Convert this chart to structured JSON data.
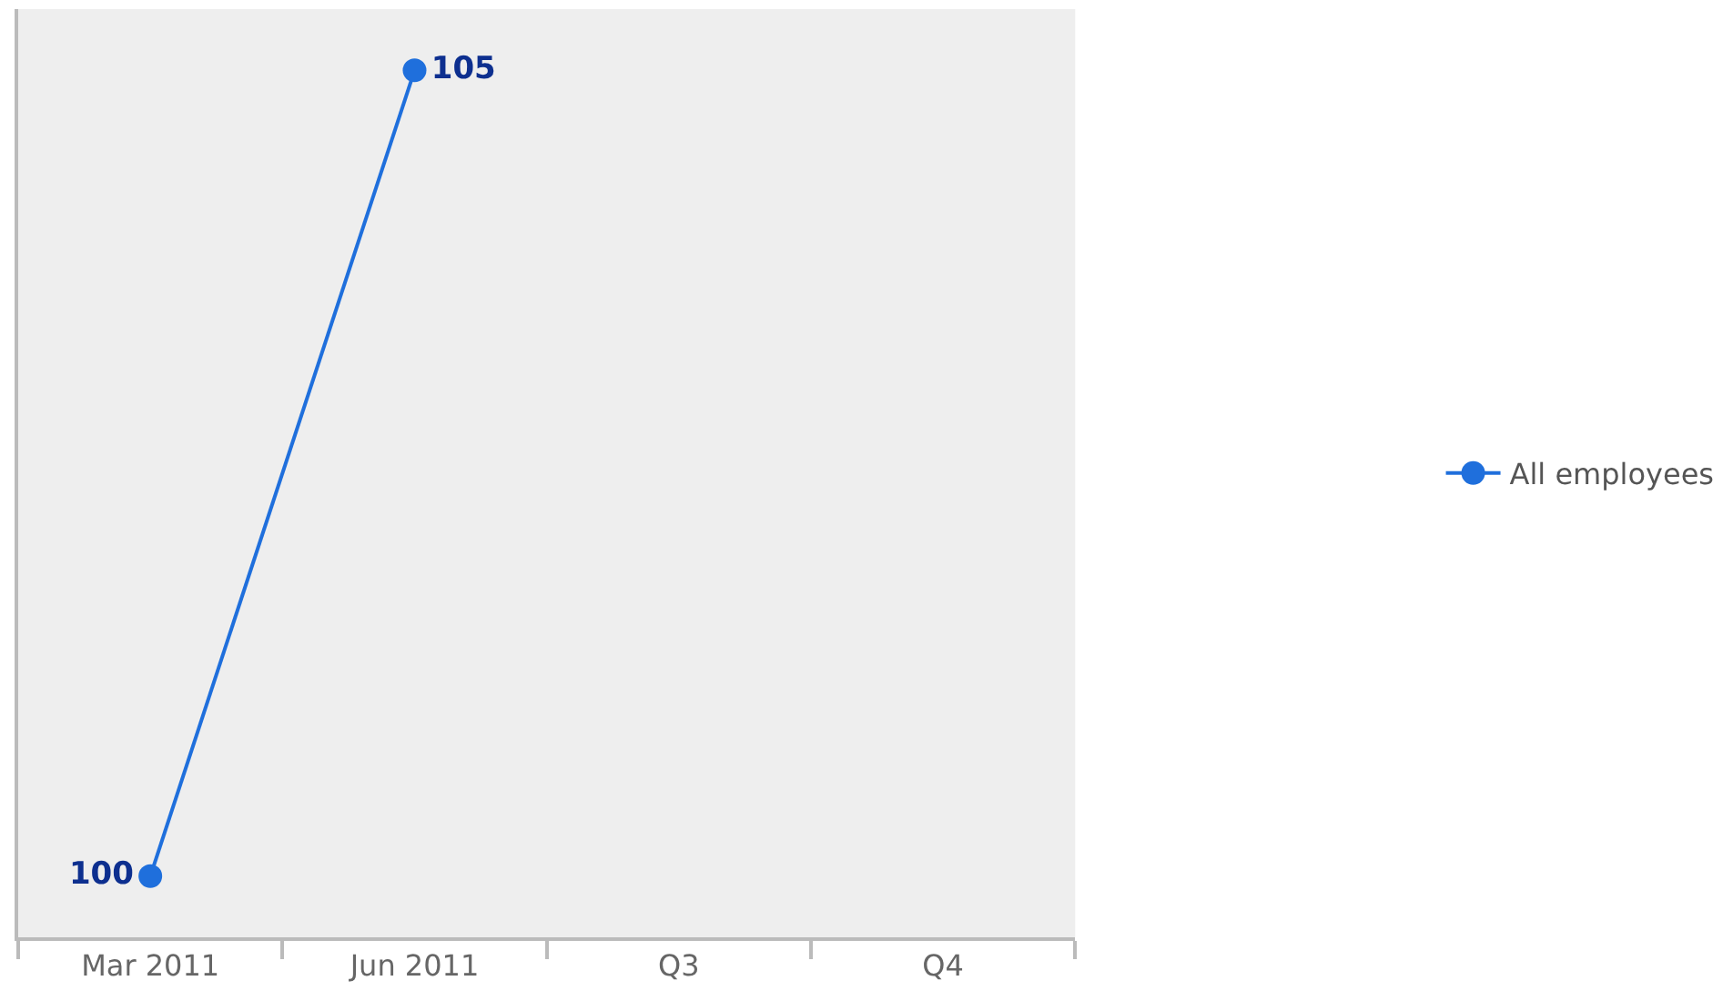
{
  "chart_data": {
    "type": "line",
    "categories": [
      "Mar 2011",
      "Jun 2011",
      "Q3",
      "Q4"
    ],
    "series": [
      {
        "name": "All employees",
        "color": "#1f6fdc",
        "values": [
          100,
          105,
          null,
          null
        ]
      }
    ],
    "data_labels": true,
    "marker": "circle",
    "line_style": "solid",
    "legend": "right",
    "grid": false,
    "tick_labels": "x"
  }
}
